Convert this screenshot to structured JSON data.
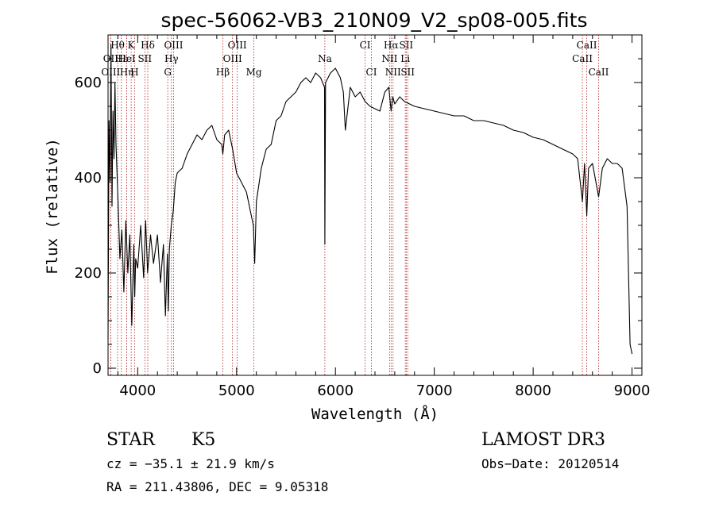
{
  "chart_data": {
    "type": "line",
    "title": "spec-56062-VB3_210N09_V2_sp08-005.fits",
    "xlabel": "Wavelength (Å)",
    "ylabel": "Flux (relative)",
    "xlim": [
      3700,
      9100
    ],
    "ylim": [
      -15,
      700
    ],
    "xticks": [
      4000,
      5000,
      6000,
      7000,
      8000,
      9000
    ],
    "yticks": [
      0,
      200,
      400,
      600
    ],
    "grid": false,
    "series": [
      {
        "x": [
          3700,
          3710,
          3720,
          3730,
          3740,
          3750,
          3760,
          3770,
          3780,
          3800,
          3820,
          3840,
          3860,
          3880,
          3900,
          3920,
          3940,
          3960,
          3970,
          3980,
          4000,
          4030,
          4060,
          4080,
          4100,
          4130,
          4160,
          4200,
          4230,
          4260,
          4280,
          4300,
          4310,
          4320,
          4340,
          4360,
          4380,
          4400,
          4450,
          4500,
          4550,
          4600,
          4650,
          4700,
          4750,
          4800,
          4850,
          4861,
          4880,
          4920,
          4960,
          5000,
          5050,
          5100,
          5150,
          5170,
          5183,
          5200,
          5250,
          5300,
          5350,
          5400,
          5450,
          5500,
          5550,
          5600,
          5650,
          5700,
          5750,
          5800,
          5850,
          5890,
          5893,
          5900,
          5950,
          6000,
          6050,
          6080,
          6100,
          6150,
          6200,
          6250,
          6300,
          6350,
          6400,
          6450,
          6500,
          6540,
          6563,
          6580,
          6600,
          6650,
          6700,
          6750,
          6800,
          6900,
          7000,
          7100,
          7200,
          7300,
          7400,
          7500,
          7600,
          7700,
          7800,
          7900,
          8000,
          8100,
          8200,
          8300,
          8400,
          8450,
          8498,
          8520,
          8542,
          8560,
          8600,
          8662,
          8700,
          8750,
          8800,
          8850,
          8900,
          8950,
          8980,
          9000
        ],
        "values": [
          60,
          520,
          390,
          680,
          340,
          540,
          440,
          600,
          470,
          360,
          230,
          290,
          160,
          310,
          200,
          280,
          90,
          260,
          150,
          230,
          210,
          300,
          190,
          310,
          200,
          280,
          220,
          280,
          180,
          260,
          110,
          240,
          120,
          250,
          300,
          330,
          390,
          410,
          420,
          450,
          470,
          490,
          480,
          500,
          510,
          480,
          470,
          450,
          490,
          500,
          460,
          410,
          390,
          370,
          320,
          300,
          220,
          350,
          420,
          460,
          470,
          520,
          530,
          560,
          570,
          580,
          600,
          610,
          600,
          620,
          610,
          590,
          260,
          600,
          620,
          630,
          610,
          580,
          500,
          590,
          570,
          580,
          560,
          550,
          545,
          540,
          580,
          590,
          540,
          570,
          555,
          570,
          560,
          555,
          550,
          545,
          540,
          535,
          530,
          530,
          520,
          520,
          515,
          510,
          500,
          495,
          485,
          480,
          470,
          460,
          450,
          440,
          350,
          430,
          320,
          420,
          430,
          360,
          420,
          440,
          430,
          430,
          420,
          340,
          50,
          30
        ]
      }
    ],
    "spectral_lines": [
      {
        "name": "Hθ",
        "x": 3797,
        "row": 1
      },
      {
        "name": "OII",
        "x": 3727,
        "row": 2
      },
      {
        "name": "OIII",
        "x": 3727,
        "row": 3
      },
      {
        "name": "Hε",
        "x": 3835,
        "row": 2
      },
      {
        "name": "Hη",
        "x": 3889,
        "row": 3
      },
      {
        "name": "K",
        "x": 3934,
        "row": 1
      },
      {
        "name": "HeI",
        "x": 3889,
        "row": 2
      },
      {
        "name": "SII",
        "x": 4072,
        "row": 2
      },
      {
        "name": "H",
        "x": 3968,
        "row": 3
      },
      {
        "name": "Hδ",
        "x": 4102,
        "row": 1
      },
      {
        "name": "OIII",
        "x": 4363,
        "row": 1
      },
      {
        "name": "Hγ",
        "x": 4341,
        "row": 2
      },
      {
        "name": "G",
        "x": 4304,
        "row": 3
      },
      {
        "name": "OIII",
        "x": 5007,
        "row": 1
      },
      {
        "name": "OIII",
        "x": 4959,
        "row": 2
      },
      {
        "name": "Hβ",
        "x": 4861,
        "row": 3
      },
      {
        "name": "Mg",
        "x": 5175,
        "row": 3
      },
      {
        "name": "Na",
        "x": 5893,
        "row": 2
      },
      {
        "name": "CI",
        "x": 6300,
        "row": 1
      },
      {
        "name": "CI",
        "x": 6364,
        "row": 3
      },
      {
        "name": "Hα",
        "x": 6563,
        "row": 1
      },
      {
        "name": "SII",
        "x": 6716,
        "row": 1
      },
      {
        "name": "NII",
        "x": 6548,
        "row": 2
      },
      {
        "name": "Li",
        "x": 6707,
        "row": 2
      },
      {
        "name": "NII",
        "x": 6583,
        "row": 3
      },
      {
        "name": "SII",
        "x": 6731,
        "row": 3
      },
      {
        "name": "CaII",
        "x": 8542,
        "row": 1
      },
      {
        "name": "CaII",
        "x": 8498,
        "row": 2
      },
      {
        "name": "CaII",
        "x": 8662,
        "row": 3
      }
    ],
    "line_color": "#000000",
    "marker_color": "#b22222"
  },
  "info": {
    "object_class": "STAR",
    "subclass": "K5",
    "survey": "LAMOST DR3",
    "redshift": "cz = −35.1 ± 21.9 km/s",
    "obs_date": "Obs−Date: 20120514",
    "coords": "RA = 211.43806, DEC =   9.05318"
  }
}
